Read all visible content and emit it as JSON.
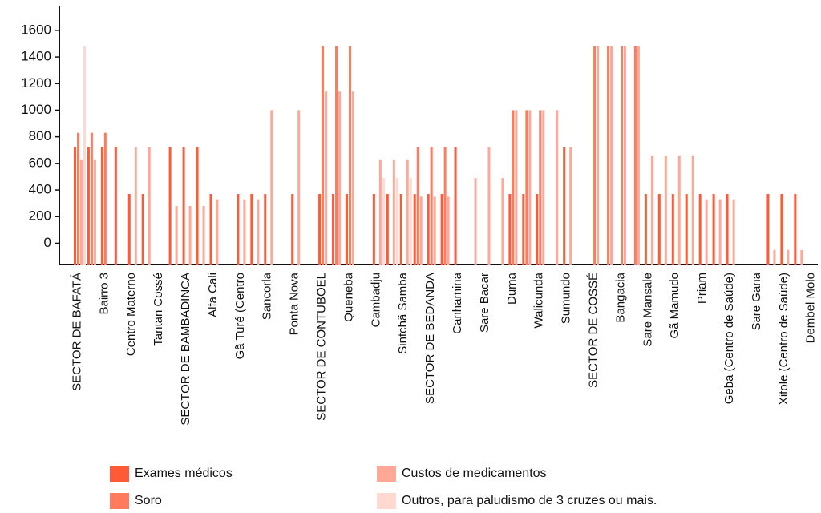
{
  "chart_data": {
    "type": "bar",
    "categories": [
      "SECTOR DE BAFATÁ",
      null,
      "Bairro 3",
      null,
      "Centro Materno",
      null,
      "Tantan Cossé",
      null,
      "SECTOR DE BAMBADINCA",
      null,
      "Alfa Cali",
      null,
      "Gã Turé (Centro",
      null,
      "Sancorla",
      null,
      "Ponta Nova",
      null,
      "SECTOR DE CONTUBOEL",
      null,
      "Queneba",
      null,
      "Cambadju",
      null,
      "Sintchã Samba",
      null,
      "SECTOR DE BEDANDA",
      null,
      "Canhamina",
      null,
      "Sare Bacar",
      null,
      "Duma",
      null,
      "Walicunda",
      null,
      "Sumundo",
      null,
      "SECTOR DE COSSÉ",
      null,
      "Bangacia",
      null,
      "Sare Mansale",
      null,
      "Gã Mamudo",
      null,
      "Priam",
      null,
      "Geba (Centro de Saúde)",
      null,
      "Sare Gana",
      null,
      "Xitole (Centro de Saúde)",
      null,
      "Dembel Molo"
    ],
    "series": [
      {
        "name": "Exames médicos",
        "color": "#ff5a36",
        "values": [
          720,
          720,
          720,
          720,
          370,
          370,
          null,
          720,
          720,
          720,
          370,
          null,
          370,
          370,
          370,
          null,
          370,
          null,
          370,
          370,
          370,
          null,
          370,
          370,
          370,
          370,
          370,
          370,
          720,
          null,
          null,
          null,
          370,
          370,
          370,
          null,
          720,
          null,
          null,
          null,
          null,
          null,
          370,
          370,
          370,
          370,
          370,
          370,
          370,
          null,
          null,
          370,
          370,
          370,
          null
        ]
      },
      {
        "name": "Soro",
        "color": "#ff7b5c",
        "values": [
          830,
          830,
          830,
          null,
          null,
          null,
          null,
          null,
          null,
          null,
          null,
          null,
          null,
          null,
          null,
          null,
          null,
          null,
          1480,
          1480,
          1480,
          null,
          null,
          null,
          null,
          720,
          720,
          720,
          null,
          null,
          null,
          null,
          1000,
          1000,
          1000,
          null,
          null,
          null,
          1480,
          1480,
          1480,
          1480,
          null,
          null,
          null,
          null,
          null,
          null,
          null,
          null,
          null,
          null,
          null,
          null,
          null
        ]
      },
      {
        "name": "Custos de medicamentos",
        "color": "#ffa898",
        "values": [
          630,
          630,
          null,
          null,
          720,
          720,
          null,
          280,
          280,
          280,
          330,
          null,
          330,
          330,
          1000,
          null,
          1000,
          null,
          1140,
          1140,
          1140,
          null,
          630,
          630,
          630,
          350,
          350,
          350,
          null,
          490,
          720,
          490,
          1000,
          1000,
          1000,
          1000,
          720,
          null,
          1480,
          1480,
          1480,
          1480,
          660,
          660,
          660,
          660,
          330,
          330,
          330,
          null,
          null,
          -50,
          -50,
          -50,
          null
        ]
      },
      {
        "name": "Outros, para paludismo de 3 cruzes ou mais.",
        "color": "#ffd8d0",
        "values": [
          1480,
          null,
          null,
          null,
          null,
          null,
          null,
          null,
          null,
          null,
          null,
          null,
          null,
          null,
          null,
          null,
          null,
          null,
          null,
          null,
          null,
          null,
          490,
          490,
          490,
          null,
          null,
          null,
          null,
          null,
          null,
          null,
          null,
          null,
          null,
          null,
          null,
          null,
          null,
          null,
          null,
          null,
          null,
          null,
          null,
          null,
          null,
          null,
          null,
          null,
          null,
          null,
          null,
          null,
          null
        ]
      }
    ],
    "ylim": [
      -160,
      1780
    ],
    "yticks": [
      0,
      200,
      400,
      600,
      800,
      1000,
      1200,
      1400,
      1600
    ]
  }
}
